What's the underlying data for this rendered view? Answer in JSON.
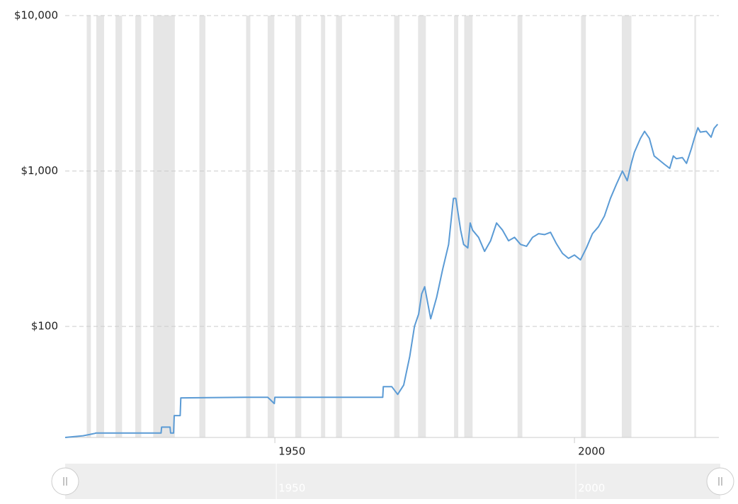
{
  "chart_data": {
    "type": "line",
    "x": [
      1915,
      1918,
      1920,
      1920.1,
      1931,
      1931.1,
      1932.5,
      1932.6,
      1933.1,
      1933.2,
      1934.2,
      1934.3,
      1945,
      1948.8,
      1949.9,
      1950,
      1968,
      1968.1,
      1969.5,
      1970.5,
      1971.5,
      1972.5,
      1973.3,
      1974,
      1974.5,
      1975,
      1976,
      1977,
      1978,
      1979,
      1979.8,
      1980.2,
      1980.5,
      1981,
      1981.5,
      1982.2,
      1982.6,
      1983,
      1984,
      1985,
      1986,
      1987,
      1988,
      1989,
      1990,
      1991,
      1992,
      1993,
      1994,
      1995,
      1996,
      1997,
      1998,
      1999,
      2000,
      2001,
      2002,
      2003,
      2004,
      2005,
      2006,
      2007,
      2008,
      2008.8,
      2009.5,
      2010,
      2011,
      2011.7,
      2012.5,
      2013.3,
      2014,
      2015,
      2015.9,
      2016.5,
      2017,
      2018,
      2018.7,
      2019.5,
      2020,
      2020.6,
      2021,
      2022,
      2022.8,
      2023.3,
      2023.9
    ],
    "series": [
      {
        "color": "#5b9bd5",
        "values": [
          19.3,
          19.8,
          20.5,
          20.6,
          20.6,
          22.5,
          22.5,
          20.6,
          20.6,
          26.7,
          26.7,
          34.7,
          35,
          35,
          31.9,
          35,
          35,
          41,
          41,
          36.5,
          42,
          64,
          100,
          120,
          162,
          180,
          112,
          154,
          233,
          337,
          667,
          667,
          560,
          416,
          337,
          320,
          463,
          416,
          374,
          304,
          356,
          463,
          416,
          356,
          374,
          337,
          328,
          374,
          395,
          390,
          403,
          340,
          295,
          274,
          288,
          268,
          320,
          395,
          438,
          513,
          667,
          821,
          1000,
          866,
          1125,
          1320,
          1620,
          1800,
          1620,
          1250,
          1188,
          1106,
          1040,
          1250,
          1200,
          1220,
          1120,
          1390,
          1620,
          1900,
          1780,
          1800,
          1650,
          1880,
          2000
        ]
      }
    ],
    "recessions": [
      [
        1918.6,
        1919.3
      ],
      [
        1920.2,
        1921.5
      ],
      [
        1923.4,
        1924.5
      ],
      [
        1926.7,
        1927.7
      ],
      [
        1929.7,
        1933.3
      ],
      [
        1937.4,
        1938.4
      ],
      [
        1945.2,
        1945.9
      ],
      [
        1948.8,
        1949.9
      ],
      [
        1953.4,
        1954.4
      ],
      [
        1957.7,
        1958.4
      ],
      [
        1960.2,
        1961.2
      ],
      [
        1969.9,
        1970.8
      ],
      [
        1973.9,
        1975.2
      ],
      [
        1979.9,
        1980.6
      ],
      [
        1981.6,
        1983
      ],
      [
        1990.5,
        1991.3
      ],
      [
        2001.1,
        2001.9
      ],
      [
        2007.9,
        2009.5
      ],
      [
        2020,
        2020.3
      ]
    ],
    "xlim": [
      1915,
      2024.1
    ],
    "xticks": [
      1950,
      2000
    ],
    "ylim": [
      19.3,
      10000
    ],
    "log_y": true,
    "grid": true,
    "yticks": [
      {
        "value": 100,
        "label": "$100"
      },
      {
        "value": 1000,
        "label": "$1,000"
      },
      {
        "value": 10000,
        "label": "$10,000"
      }
    ]
  }
}
